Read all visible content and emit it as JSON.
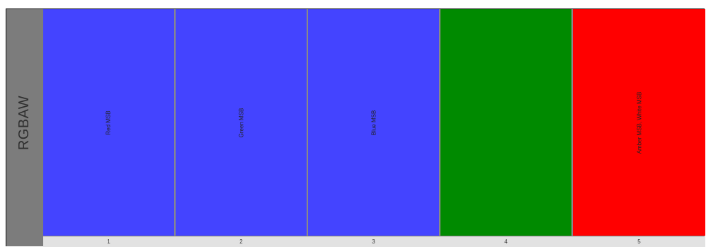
{
  "profile": {
    "name": "RGBAW"
  },
  "channels": [
    {
      "number": "1",
      "label": "Red MSB",
      "color": "#4444ff"
    },
    {
      "number": "2",
      "label": "Green MSB",
      "color": "#4444ff"
    },
    {
      "number": "3",
      "label": "Blue MSB",
      "color": "#4444ff"
    },
    {
      "number": "4",
      "label": "",
      "color": "#008a00"
    },
    {
      "number": "5",
      "label": "Amber MSB, White MSB",
      "color": "#ff0000"
    }
  ]
}
